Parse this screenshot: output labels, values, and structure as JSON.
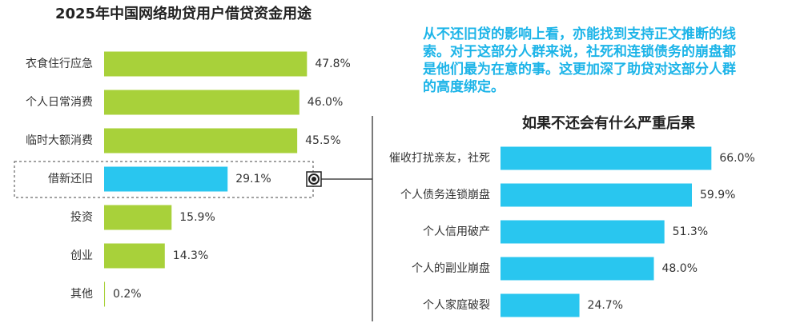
{
  "chart_data": [
    {
      "type": "bar",
      "orientation": "horizontal",
      "title": "2025年中国网络助贷用户借贷资金用途",
      "categories": [
        "衣食住行应急",
        "个人日常消费",
        "临时大额消费",
        "借新还旧",
        "投资",
        "创业",
        "其他"
      ],
      "values": [
        47.8,
        46.0,
        45.5,
        29.1,
        15.9,
        14.3,
        0.2
      ],
      "value_labels": [
        "47.8%",
        "46.0%",
        "45.5%",
        "29.1%",
        "15.9%",
        "14.3%",
        "0.2%"
      ],
      "colors": [
        "#a8d13a",
        "#a8d13a",
        "#a8d13a",
        "#29c6ef",
        "#a8d13a",
        "#a8d13a",
        "#a8d13a"
      ]
    },
    {
      "type": "bar",
      "orientation": "horizontal",
      "title": "如果不还会有什么严重后果",
      "annotation": [
        "从不还旧贷的影响上看，亦能找到支持正文推断的线",
        "索。对于这部分人群来说，社死和连锁债务的崩盘都",
        "是他们最为在意的事。这更加深了助贷对这部分人群",
        "的高度绑定。"
      ],
      "categories": [
        "催收打扰亲友，社死",
        "个人债务连锁崩盘",
        "个人信用破产",
        "个人的副业崩盘",
        "个人家庭破裂"
      ],
      "values": [
        66.0,
        59.9,
        51.3,
        48.0,
        24.7
      ],
      "value_labels": [
        "66.0%",
        "59.9%",
        "51.3%",
        "48.0%",
        "24.7%"
      ],
      "colors": [
        "#29c6ef",
        "#29c6ef",
        "#29c6ef",
        "#29c6ef",
        "#29c6ef"
      ]
    }
  ]
}
